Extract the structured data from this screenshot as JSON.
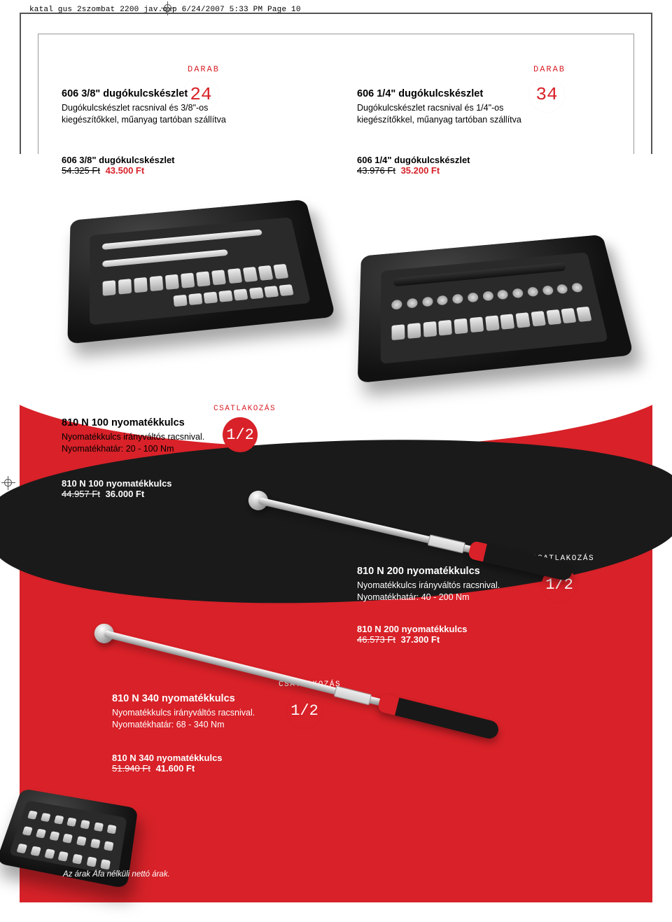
{
  "header": {
    "file_info": "katal gus 2szombat 2200 jav.qxp  6/24/2007  5:33 PM  Page 10"
  },
  "colors": {
    "brand_red": "#d82128",
    "black": "#1a1a1a",
    "white": "#ffffff",
    "steel_light": "#eeeeee",
    "steel_dark": "#8a8a8a"
  },
  "darab_label": "DARAB",
  "csat_label": "CSATLAKOZÁS",
  "page_number": "10",
  "footer": "Az árak Áfa nélküli nettó árak.",
  "products": {
    "socket38": {
      "title": "606 3/8\" dugókulcskészlet",
      "desc_l1": "Dugókulcskészlet racsnival és 3/8\"-os",
      "desc_l2": "kiegészítőkkel, műanyag tartóban szállítva",
      "badge": "24",
      "price_name": "606 3/8\" dugókulcskészlet",
      "price_old": "54.325 Ft",
      "price_new": "43.500 Ft"
    },
    "socket14": {
      "title": "606 1/4\" dugókulcskészlet",
      "desc_l1": "Dugókulcskészlet racsnival és 1/4\"-os",
      "desc_l2": "kiegészítőkkel, műanyag tartóban szállítva",
      "badge": "34",
      "price_name": "606 1/4\" dugókulcskészlet",
      "price_old": "43.976 Ft",
      "price_new": "35.200 Ft"
    },
    "tw100": {
      "title": "810 N 100 nyomatékkulcs",
      "desc_l1": "Nyomatékkulcs irányváltós racsnival.",
      "desc_l2": "Nyomatékhatár: 20 - 100 Nm",
      "badge": "1/2",
      "price_name": "810 N 100 nyomatékkulcs",
      "price_old": "44.957 Ft",
      "price_new": "36.000 Ft"
    },
    "tw200": {
      "title": "810 N 200 nyomatékkulcs",
      "desc_l1": "Nyomatékkulcs irányváltós racsnival.",
      "desc_l2": "Nyomatékhatár: 40 - 200 Nm",
      "badge": "1/2",
      "price_name": "810 N 200 nyomatékkulcs",
      "price_old": "46.573 Ft",
      "price_new": "37.300 Ft"
    },
    "tw340": {
      "title": "810 N 340 nyomatékkulcs",
      "desc_l1": "Nyomatékkulcs irányváltós racsnival.",
      "desc_l2": "Nyomatékhatár: 68 - 340 Nm",
      "badge": "1/2",
      "price_name": "810 N 340 nyomatékkulcs",
      "price_old": "51.940 Ft",
      "price_new": "41.600 Ft"
    }
  }
}
